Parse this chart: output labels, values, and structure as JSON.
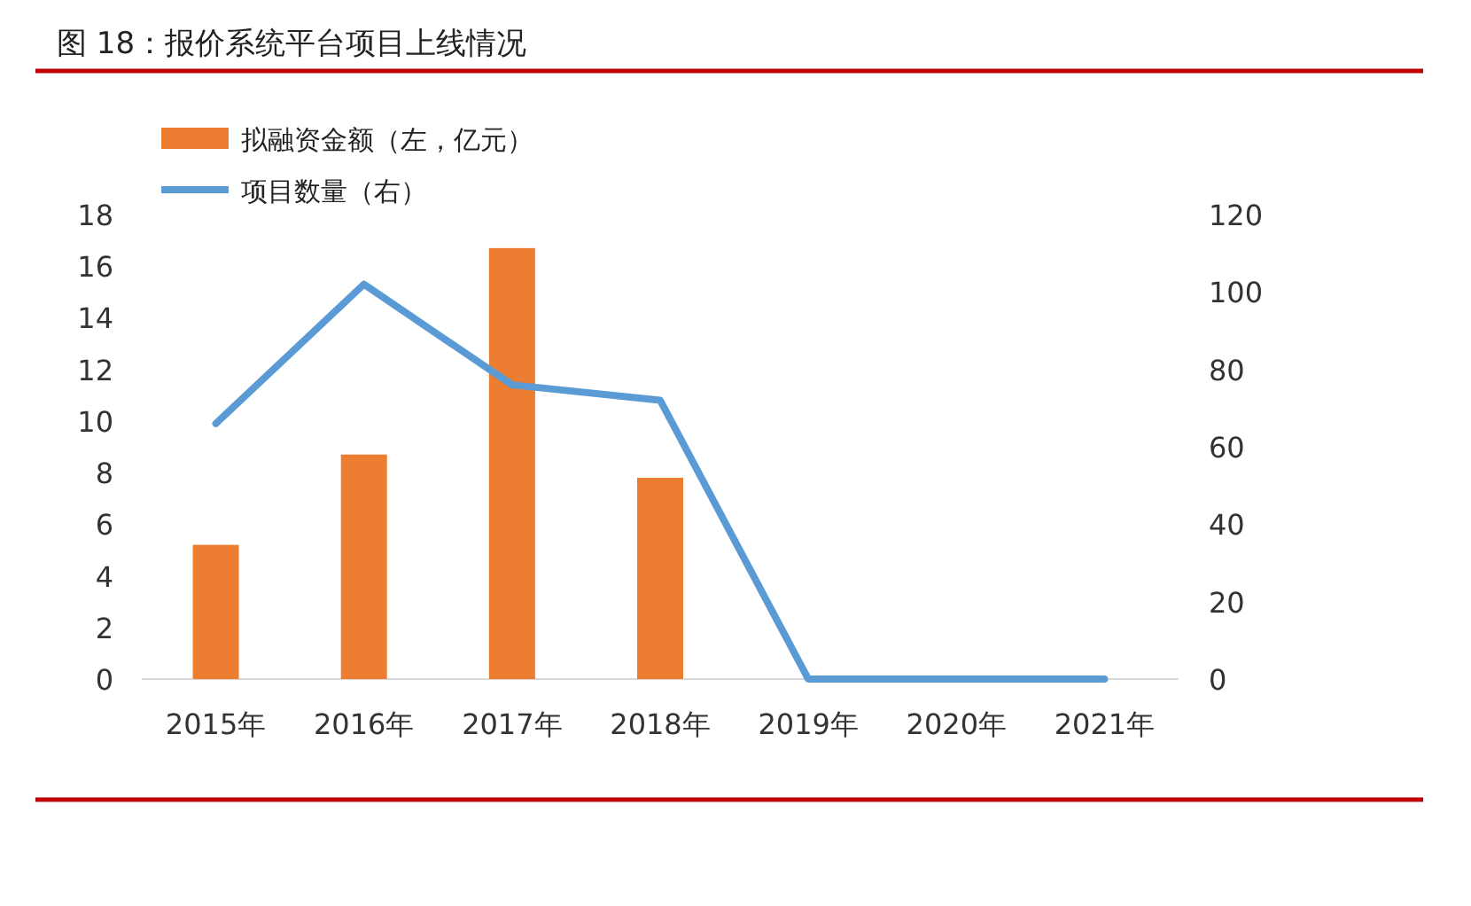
{
  "chart_data": {
    "type": "bar",
    "title": "图 18：报价系统平台项目上线情况",
    "categories": [
      "2015年",
      "2016年",
      "2017年",
      "2018年",
      "2019年",
      "2020年",
      "2021年"
    ],
    "series": [
      {
        "name": "拟融资金额（左，亿元）",
        "color": "#ed7d31",
        "values": [
          5.2,
          8.7,
          16.7,
          7.8,
          0,
          0,
          0
        ]
      },
      {
        "name": "项目数量（右）",
        "color": "#5b9bd5",
        "type": "line",
        "axis": "y2",
        "values": [
          66,
          102,
          76,
          72,
          0,
          0,
          0
        ]
      }
    ],
    "ylim": [
      0,
      18
    ],
    "yticks": [
      0,
      2,
      4,
      6,
      8,
      10,
      12,
      14,
      16,
      18
    ],
    "y2lim": [
      0,
      120
    ],
    "y2ticks": [
      0,
      20,
      40,
      60,
      80,
      100,
      120
    ],
    "legend": "top left"
  }
}
